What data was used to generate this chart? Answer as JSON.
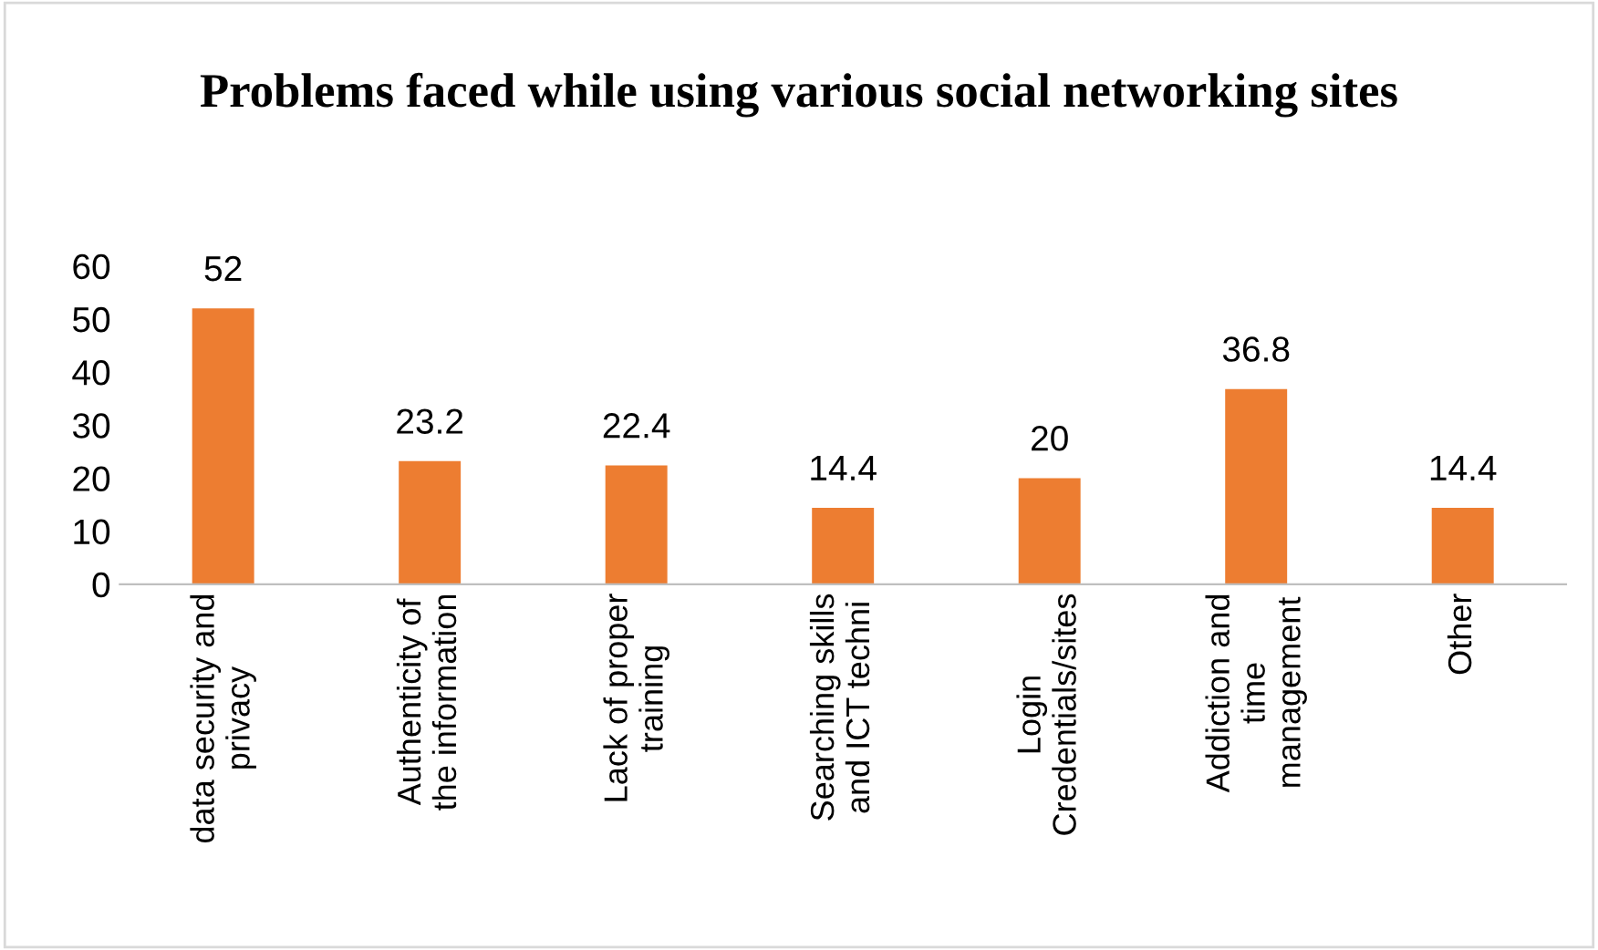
{
  "chart_data": {
    "type": "bar",
    "title": "Problems faced while using various social networking sites",
    "categories": [
      "data security and\nprivacy",
      "Authenticity of\nthe information",
      "Lack of proper\ntraining",
      "Searching skills\nand ICT techni",
      "Login\nCredentials/sites",
      "Addiction and\ntime\nmanagement",
      "Other"
    ],
    "values": [
      52,
      23.2,
      22.4,
      14.4,
      20,
      36.8,
      14.4
    ],
    "color": "#ed7d31",
    "ylim": [
      0,
      60
    ],
    "yticks": [
      0,
      10,
      20,
      30,
      40,
      50,
      60
    ],
    "grid": false,
    "data_labels": true
  }
}
